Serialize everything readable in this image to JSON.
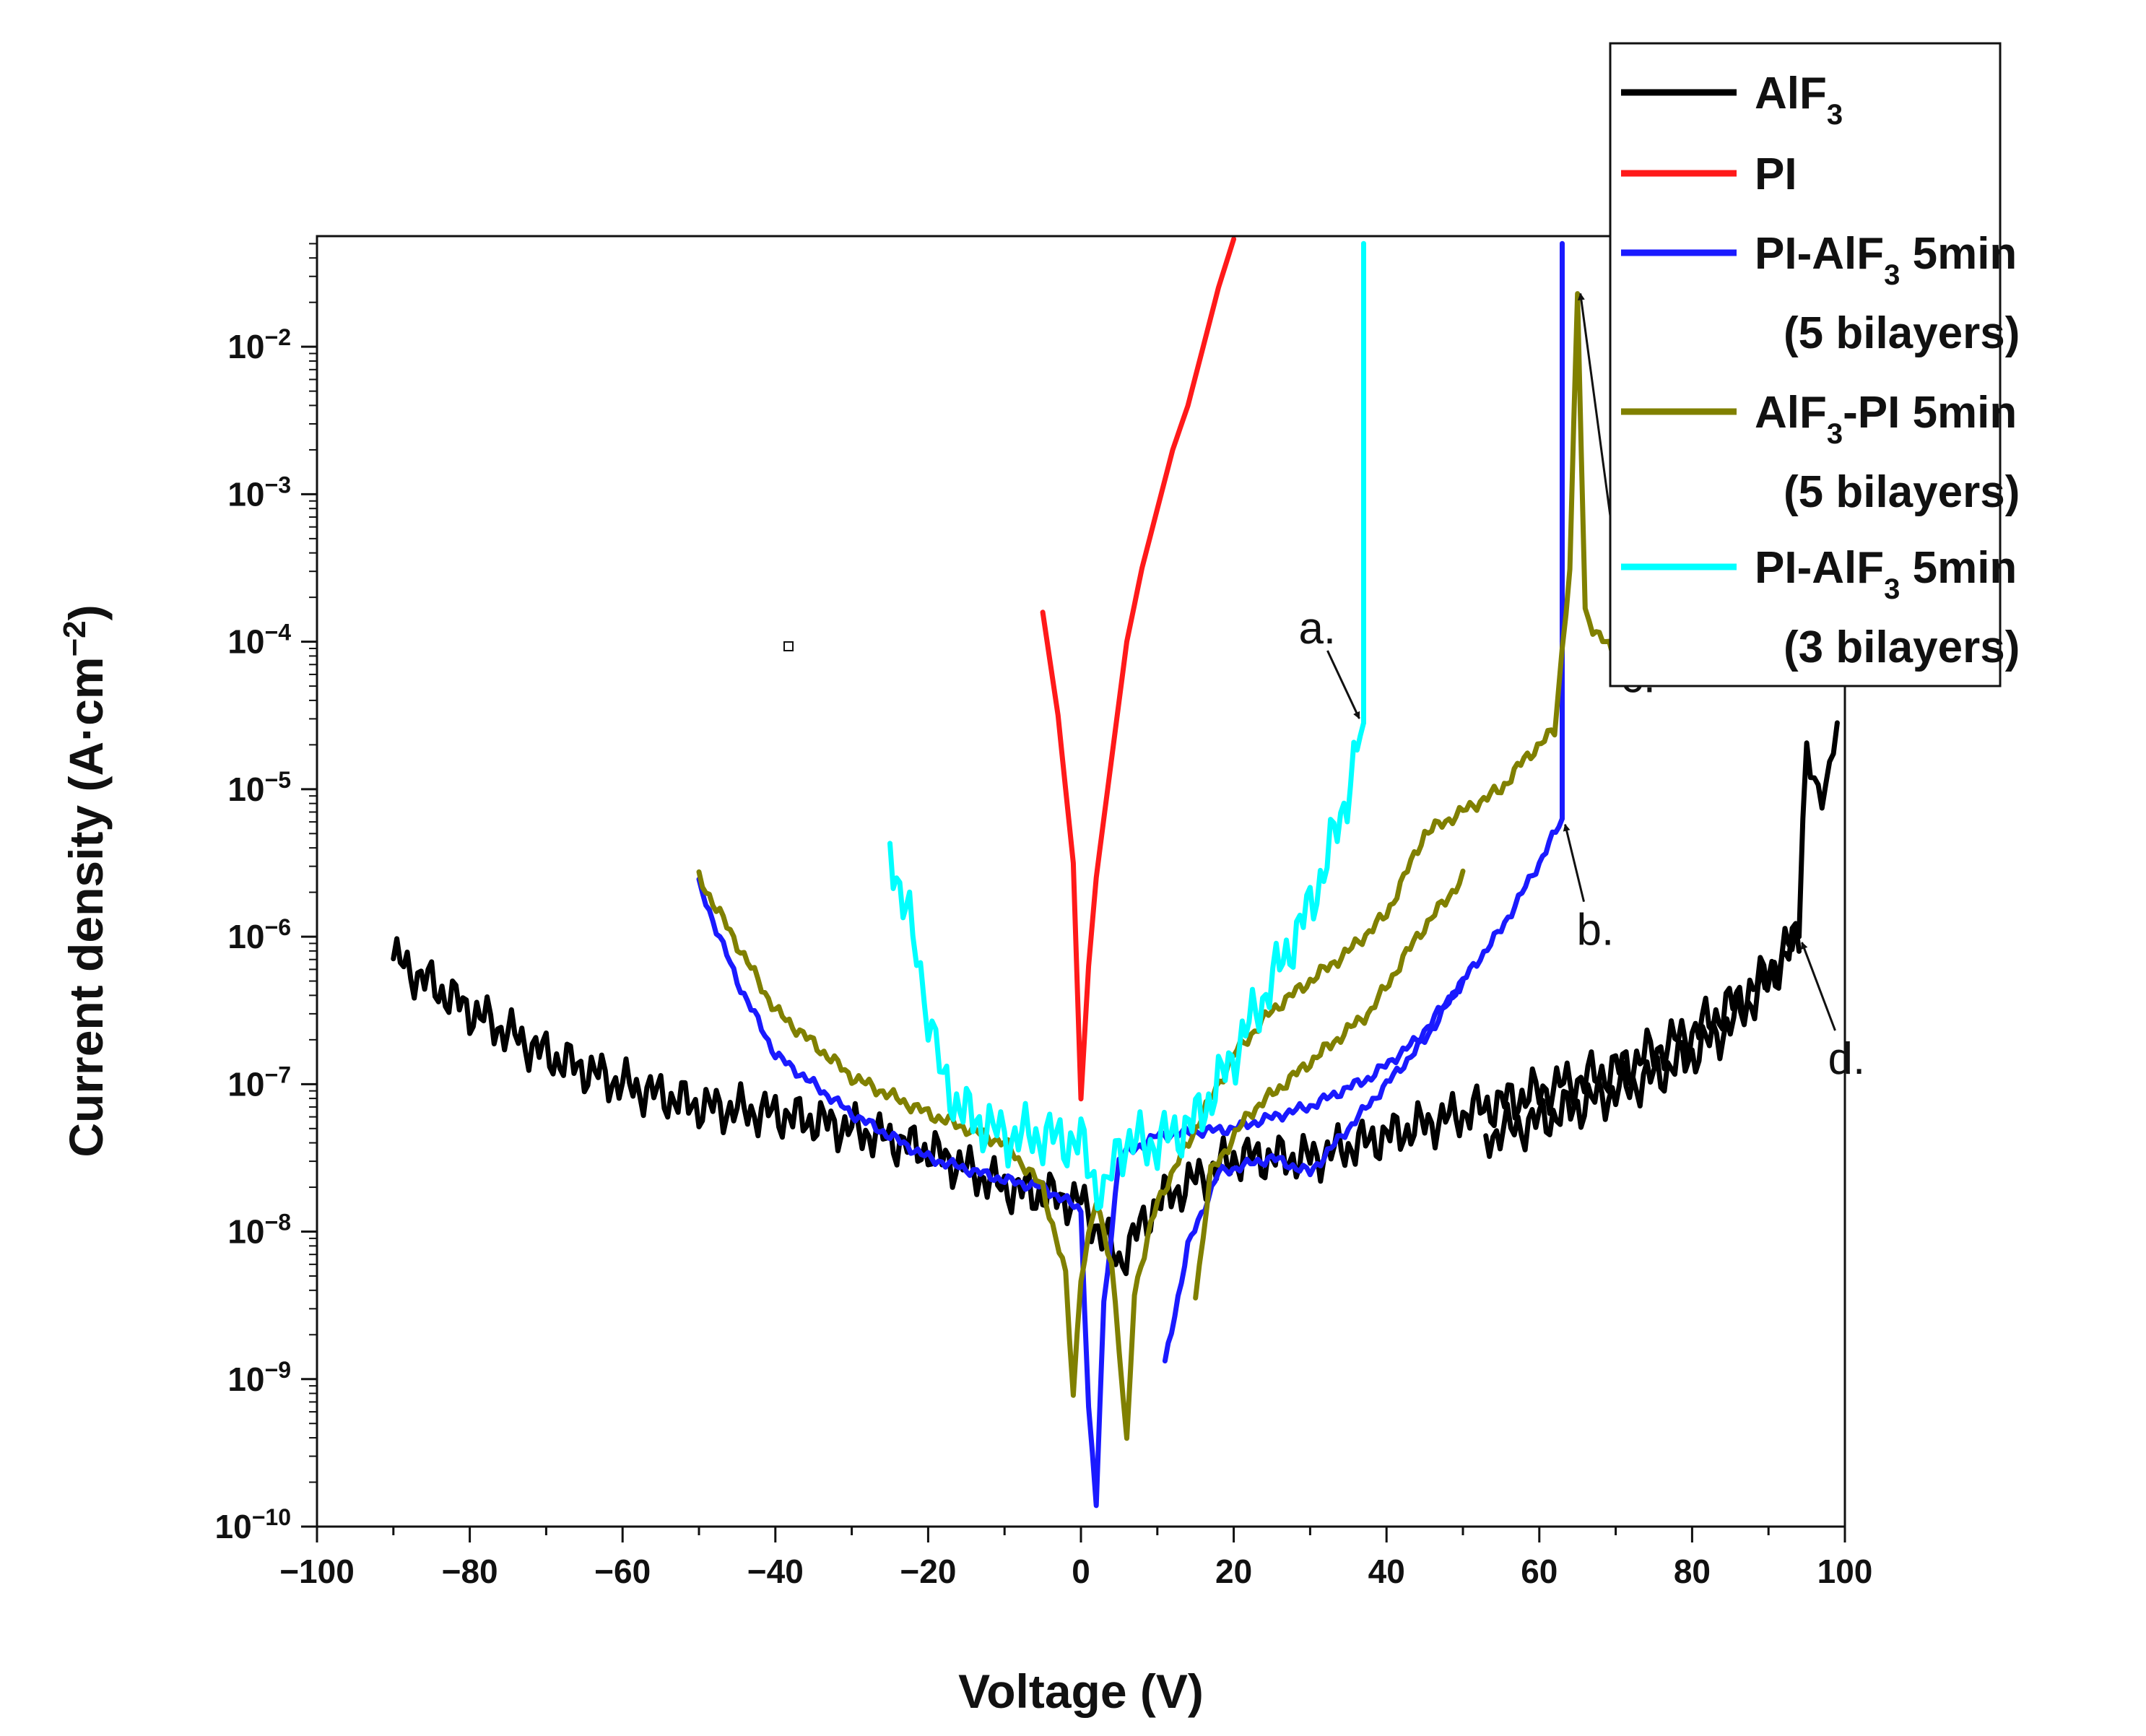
{
  "chart_data": {
    "type": "line",
    "title": "",
    "xlabel": "Voltage (V)",
    "ylabel": {
      "base": "Current density (A·cm",
      "sup": "−2",
      "end": ")"
    },
    "xlim": [
      -100,
      100
    ],
    "ylim_log10": [
      -10,
      -1.25
    ],
    "y_scale": "log",
    "grid": false,
    "legend_position": "top-right",
    "x_ticks": [
      {
        "value": -100,
        "label": "−100"
      },
      {
        "value": -80,
        "label": "−80"
      },
      {
        "value": -60,
        "label": "−60"
      },
      {
        "value": -40,
        "label": "−40"
      },
      {
        "value": -20,
        "label": "−20"
      },
      {
        "value": 0,
        "label": "0"
      },
      {
        "value": 20,
        "label": "20"
      },
      {
        "value": 40,
        "label": "40"
      },
      {
        "value": 60,
        "label": "60"
      },
      {
        "value": 80,
        "label": "80"
      },
      {
        "value": 100,
        "label": "100"
      }
    ],
    "y_ticks": [
      {
        "exp": -10,
        "base": "10",
        "sup": "−10"
      },
      {
        "exp": -9,
        "base": "10",
        "sup": "−9"
      },
      {
        "exp": -8,
        "base": "10",
        "sup": "−8"
      },
      {
        "exp": -7,
        "base": "10",
        "sup": "−7"
      },
      {
        "exp": -6,
        "base": "10",
        "sup": "−6"
      },
      {
        "exp": -5,
        "base": "10",
        "sup": "−5"
      },
      {
        "exp": -4,
        "base": "10",
        "sup": "−4"
      },
      {
        "exp": -3,
        "base": "10",
        "sup": "−3"
      },
      {
        "exp": -2,
        "base": "10",
        "sup": "−2"
      }
    ],
    "series": [
      {
        "key": "alf3",
        "color": "#000000",
        "noise": 0.18,
        "segments": [
          [
            [
              -90,
              -6.15
            ],
            [
              -80,
              -6.5
            ],
            [
              -70,
              -6.8
            ],
            [
              -60,
              -7.0
            ],
            [
              -50,
              -7.15
            ],
            [
              -40,
              -7.2
            ],
            [
              -30,
              -7.3
            ],
            [
              -20,
              -7.45
            ],
            [
              -10,
              -7.7
            ],
            [
              -5,
              -7.75
            ],
            [
              0,
              -7.8
            ],
            [
              5,
              -8.2
            ],
            [
              10,
              -7.8
            ],
            [
              20,
              -7.5
            ],
            [
              30,
              -7.5
            ],
            [
              40,
              -7.35
            ],
            [
              50,
              -7.2
            ],
            [
              60,
              -7.05
            ],
            [
              70,
              -6.9
            ],
            [
              80,
              -6.65
            ],
            [
              88,
              -6.35
            ],
            [
              94,
              -6.0
            ]
          ],
          [
            [
              94,
              -6.0
            ],
            [
              94.5,
              -5.2
            ],
            [
              95,
              -4.75
            ],
            [
              96,
              -5.0
            ],
            [
              98,
              -4.9
            ],
            [
              99,
              -4.55
            ]
          ],
          [
            [
              94,
              -6.0
            ],
            [
              90,
              -6.3
            ],
            [
              85,
              -6.6
            ],
            [
              80,
              -6.8
            ],
            [
              75,
              -6.95
            ],
            [
              70,
              -7.05
            ],
            [
              60,
              -7.25
            ],
            [
              53,
              -7.35
            ]
          ]
        ]
      },
      {
        "key": "pi",
        "color": "#ff1a1a",
        "noise": 0,
        "segments": [
          [
            [
              -5,
              -3.8
            ],
            [
              -3,
              -4.5
            ],
            [
              -1,
              -5.5
            ],
            [
              0,
              -7.1
            ],
            [
              1,
              -6.2
            ],
            [
              2,
              -5.6
            ],
            [
              4,
              -4.8
            ],
            [
              6,
              -4.0
            ],
            [
              8,
              -3.5
            ],
            [
              10,
              -3.1
            ],
            [
              12,
              -2.7
            ],
            [
              14,
              -2.4
            ],
            [
              16,
              -2.0
            ],
            [
              18,
              -1.6
            ],
            [
              20,
              -1.27
            ]
          ]
        ]
      },
      {
        "key": "pi_alf3_5",
        "color": "#1a1aff",
        "noise": 0.04,
        "segments": [
          [
            [
              -50,
              -5.65
            ],
            [
              -45,
              -6.3
            ],
            [
              -40,
              -6.8
            ],
            [
              -30,
              -7.2
            ],
            [
              -20,
              -7.5
            ],
            [
              -10,
              -7.65
            ],
            [
              -5,
              -7.7
            ],
            [
              0,
              -7.85
            ],
            [
              1,
              -9.2
            ],
            [
              2,
              -9.85
            ],
            [
              3,
              -8.5
            ],
            [
              5,
              -7.5
            ],
            [
              10,
              -7.35
            ],
            [
              20,
              -7.3
            ],
            [
              30,
              -7.15
            ],
            [
              38,
              -6.95
            ],
            [
              44,
              -6.7
            ],
            [
              50,
              -6.3
            ],
            [
              55,
              -5.95
            ],
            [
              60,
              -5.5
            ],
            [
              63,
              -5.2
            ]
          ],
          [
            [
              63,
              -5.2
            ],
            [
              63,
              -4.5
            ],
            [
              63,
              -1.3
            ]
          ],
          [
            [
              11,
              -8.9
            ],
            [
              14,
              -8.1
            ],
            [
              18,
              -7.6
            ],
            [
              25,
              -7.5
            ],
            [
              30,
              -7.6
            ],
            [
              35,
              -7.3
            ],
            [
              40,
              -7.0
            ],
            [
              45,
              -6.7
            ],
            [
              50,
              -6.3
            ]
          ]
        ]
      },
      {
        "key": "alf3_pi_5",
        "color": "#808000",
        "noise": 0.05,
        "segments": [
          [
            [
              -50,
              -5.6
            ],
            [
              -40,
              -6.5
            ],
            [
              -30,
              -6.95
            ],
            [
              -20,
              -7.2
            ],
            [
              -10,
              -7.4
            ],
            [
              -5,
              -7.7
            ],
            [
              -2,
              -8.3
            ],
            [
              -1,
              -9.1
            ],
            [
              0,
              -8.3
            ],
            [
              2,
              -7.8
            ],
            [
              4,
              -8.2
            ],
            [
              5,
              -8.8
            ],
            [
              6,
              -9.45
            ],
            [
              7,
              -8.4
            ],
            [
              10,
              -7.8
            ],
            [
              15,
              -7.3
            ],
            [
              20,
              -6.8
            ],
            [
              25,
              -6.5
            ],
            [
              30,
              -6.3
            ],
            [
              35,
              -6.1
            ],
            [
              40,
              -5.85
            ],
            [
              45,
              -5.3
            ],
            [
              50,
              -5.15
            ],
            [
              55,
              -5.0
            ],
            [
              58,
              -4.8
            ],
            [
              62,
              -4.6
            ],
            [
              64,
              -3.5
            ],
            [
              65,
              -1.65
            ],
            [
              66,
              -3.8
            ],
            [
              67,
              -3.9
            ],
            [
              70,
              -4.1
            ]
          ],
          [
            [
              50,
              -5.6
            ],
            [
              44,
              -6.0
            ],
            [
              38,
              -6.5
            ],
            [
              30,
              -6.85
            ],
            [
              22,
              -7.2
            ],
            [
              17,
              -7.6
            ],
            [
              15,
              -8.45
            ]
          ]
        ]
      },
      {
        "key": "pi_alf3_3",
        "color": "#00ffff",
        "noise": 0.22,
        "segments": [
          [
            [
              -25,
              -5.4
            ],
            [
              -22,
              -6.0
            ],
            [
              -20,
              -6.5
            ],
            [
              -18,
              -7.0
            ],
            [
              -15,
              -7.2
            ],
            [
              -12,
              -7.3
            ],
            [
              -10,
              -7.35
            ],
            [
              -5,
              -7.35
            ],
            [
              0,
              -7.4
            ],
            [
              3,
              -7.8
            ],
            [
              5,
              -7.4
            ],
            [
              10,
              -7.4
            ],
            [
              15,
              -7.25
            ],
            [
              18,
              -7.0
            ],
            [
              22,
              -6.6
            ],
            [
              26,
              -6.2
            ],
            [
              30,
              -5.8
            ],
            [
              34,
              -5.2
            ],
            [
              37,
              -4.55
            ]
          ],
          [
            [
              37,
              -4.55
            ],
            [
              37,
              -3.5
            ],
            [
              37,
              -1.3
            ]
          ]
        ]
      }
    ],
    "legend": [
      {
        "key": "alf3",
        "color": "#000000",
        "text": "AlF",
        "sub": "3",
        "rest": "",
        "line2": ""
      },
      {
        "key": "pi",
        "color": "#ff1a1a",
        "text": "PI",
        "sub": "",
        "rest": "",
        "line2": ""
      },
      {
        "key": "pi_alf3_5",
        "color": "#1a1aff",
        "text": "PI-AlF",
        "sub": "3",
        "rest": " 5min",
        "line2": "(5 bilayers)"
      },
      {
        "key": "alf3_pi_5",
        "color": "#808000",
        "text": "AlF",
        "sub": "3",
        "rest": "-PI 5min",
        "line2": "(5 bilayers)"
      },
      {
        "key": "pi_alf3_3",
        "color": "#00ffff",
        "text": "PI-AlF",
        "sub": "3",
        "rest": " 5min",
        "line2": "(3 bilayers)"
      }
    ],
    "annotations": [
      {
        "text": "a.",
        "target": [
          37,
          -4.55
        ]
      },
      {
        "text": "b.",
        "target": [
          63,
          -5.2
        ]
      },
      {
        "text": "c.",
        "target": [
          65,
          -1.6
        ]
      },
      {
        "text": "d.",
        "target": [
          94,
          -6.0
        ]
      }
    ]
  }
}
